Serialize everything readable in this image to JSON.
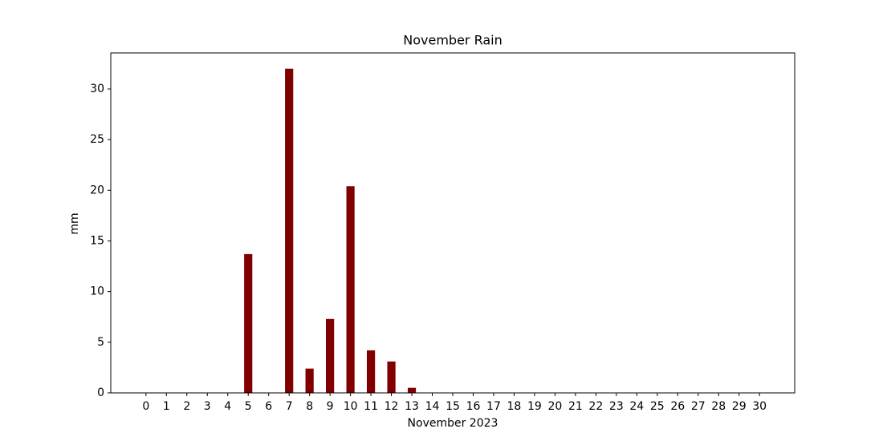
{
  "chart_data": {
    "type": "bar",
    "title": "November Rain",
    "xlabel": "November 2023",
    "ylabel": "mm",
    "x": [
      0,
      1,
      2,
      3,
      4,
      5,
      6,
      7,
      8,
      9,
      10,
      11,
      12,
      13,
      14,
      15,
      16,
      17,
      18,
      19,
      20,
      21,
      22,
      23,
      24,
      25,
      26,
      27,
      28,
      29,
      30
    ],
    "values": [
      0,
      0,
      0,
      0,
      0,
      13.7,
      0,
      32.0,
      2.4,
      7.3,
      20.4,
      4.2,
      3.1,
      0.5,
      0,
      0,
      0,
      0,
      0,
      0,
      0,
      0,
      0,
      0,
      0,
      0,
      0,
      0,
      0,
      0,
      0
    ],
    "color": "#800000",
    "xlim": [
      -1.72,
      31.72
    ],
    "xticks": [
      0,
      1,
      2,
      3,
      4,
      5,
      6,
      7,
      8,
      9,
      10,
      11,
      12,
      13,
      14,
      15,
      16,
      17,
      18,
      19,
      20,
      21,
      22,
      23,
      24,
      25,
      26,
      27,
      28,
      29,
      30
    ],
    "ylim": [
      0,
      33.56
    ],
    "yticks": [
      0,
      5,
      10,
      15,
      20,
      25,
      30
    ],
    "grid": false
  }
}
